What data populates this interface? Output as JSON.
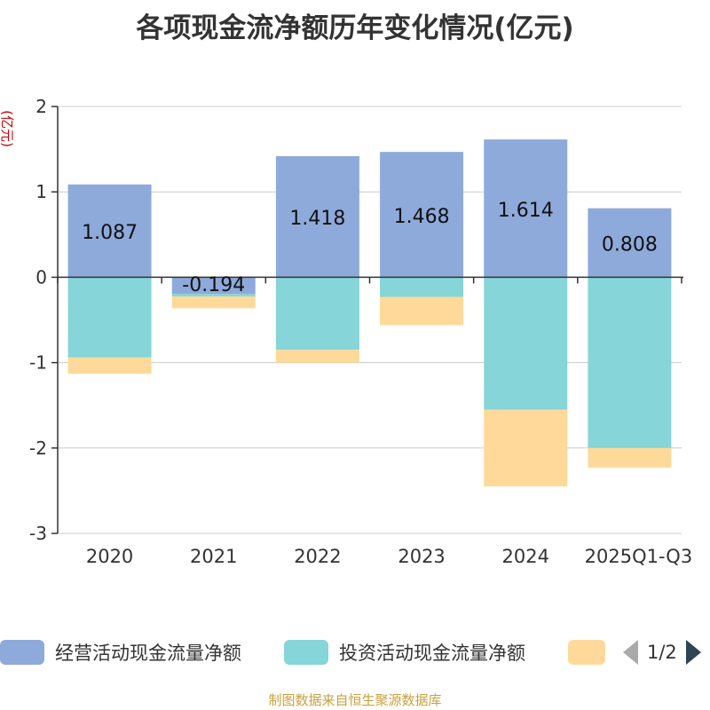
{
  "page": {
    "source_note": "制图数据来自恒生聚源数据库"
  },
  "chart_data": {
    "type": "bar",
    "stacked": true,
    "title": "各项现金流净额历年变化情况(亿元)",
    "ylabel": "(亿元)",
    "ylabel_color": "#cc0000",
    "xlabel": "",
    "ylim": [
      -3,
      2
    ],
    "yticks": [
      2,
      1,
      0,
      -1,
      -2,
      -3
    ],
    "grid": true,
    "categories": [
      "2020",
      "2021",
      "2022",
      "2023",
      "2024",
      "2025Q1-Q3"
    ],
    "series": [
      {
        "name": "经营活动现金流量净额",
        "color": "#8eaadb",
        "values": [
          1.087,
          -0.194,
          1.418,
          1.468,
          1.614,
          0.808
        ],
        "labels": [
          "1.087",
          "-0.194",
          "1.418",
          "1.468",
          "1.614",
          "0.808"
        ]
      },
      {
        "name": "投资活动现金流量净额",
        "color": "#86d5d8",
        "values": [
          -0.94,
          -0.03,
          -0.85,
          -0.23,
          -1.55,
          -2.0
        ]
      },
      {
        "name": "",
        "color": "#ffd99a",
        "values": [
          -0.19,
          -0.14,
          -0.15,
          -0.33,
          -0.9,
          -0.23
        ]
      }
    ],
    "legend_position": "bottom",
    "legend_page": "1/2"
  }
}
